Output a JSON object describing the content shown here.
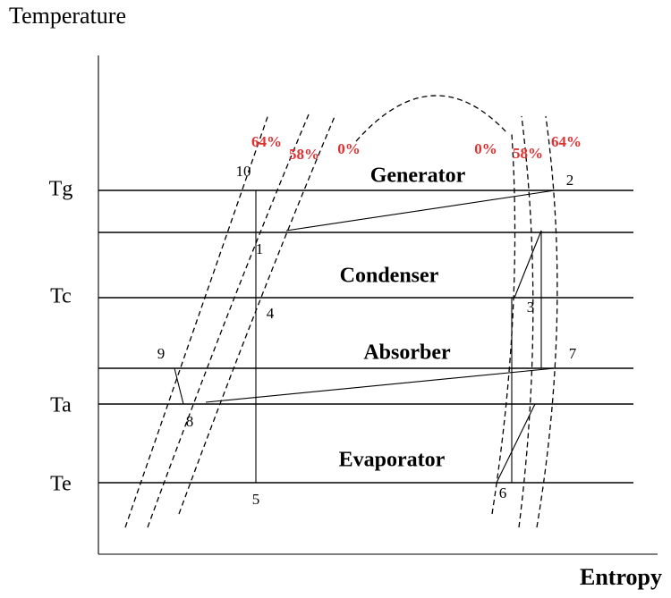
{
  "axes": {
    "y_title": "Temperature",
    "x_title": "Entropy"
  },
  "temperatures": [
    "Tg",
    "Tc",
    "Ta",
    "Te"
  ],
  "zones": [
    "Generator",
    "Condenser",
    "Absorber",
    "Evaporator"
  ],
  "points": [
    "10",
    "1",
    "4",
    "9",
    "8",
    "5",
    "2",
    "3",
    "7",
    "6"
  ],
  "concentrations": [
    "64%",
    "58%",
    "0%",
    "0%",
    "58%",
    "64%"
  ]
}
